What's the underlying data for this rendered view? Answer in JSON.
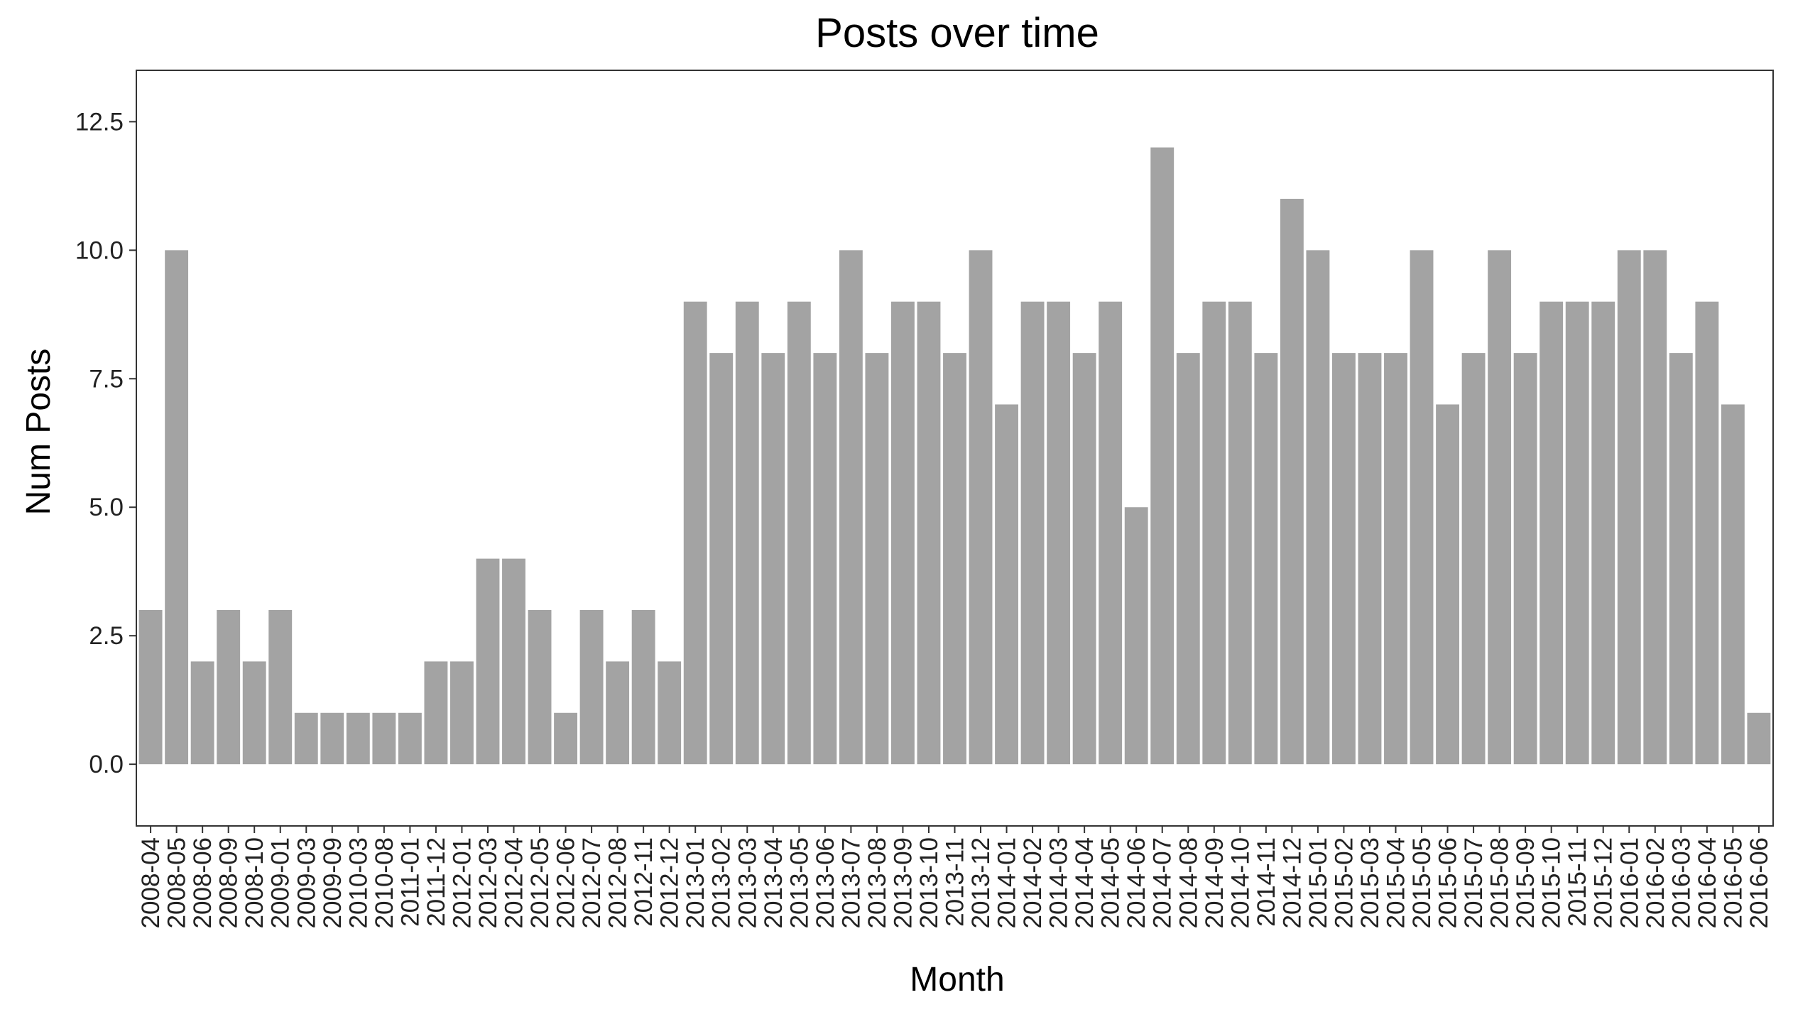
{
  "chart_data": {
    "type": "bar",
    "title": "Posts over time",
    "xlabel": "Month",
    "ylabel": "Num Posts",
    "ylim": [
      -1.2,
      13.5
    ],
    "yticks": [
      "0.0",
      "2.5",
      "5.0",
      "7.5",
      "10.0",
      "12.5"
    ],
    "ytick_values": [
      0,
      2.5,
      5,
      7.5,
      10,
      12.5
    ],
    "grid": false,
    "bar_color": "#a3a3a3",
    "categories": [
      "2008-04",
      "2008-05",
      "2008-06",
      "2008-09",
      "2008-10",
      "2009-01",
      "2009-03",
      "2009-09",
      "2010-03",
      "2010-08",
      "2011-01",
      "2011-12",
      "2012-01",
      "2012-03",
      "2012-04",
      "2012-05",
      "2012-06",
      "2012-07",
      "2012-08",
      "2012-11",
      "2012-12",
      "2013-01",
      "2013-02",
      "2013-03",
      "2013-04",
      "2013-05",
      "2013-06",
      "2013-07",
      "2013-08",
      "2013-09",
      "2013-10",
      "2013-11",
      "2013-12",
      "2014-01",
      "2014-02",
      "2014-03",
      "2014-04",
      "2014-05",
      "2014-06",
      "2014-07",
      "2014-08",
      "2014-09",
      "2014-10",
      "2014-11",
      "2014-12",
      "2015-01",
      "2015-02",
      "2015-03",
      "2015-04",
      "2015-05",
      "2015-06",
      "2015-07",
      "2015-08",
      "2015-09",
      "2015-10",
      "2015-11",
      "2015-12",
      "2016-01",
      "2016-02",
      "2016-03",
      "2016-04",
      "2016-05",
      "2016-06"
    ],
    "values": [
      3,
      10,
      2,
      3,
      2,
      3,
      1,
      1,
      1,
      1,
      1,
      2,
      2,
      4,
      4,
      3,
      1,
      3,
      2,
      3,
      2,
      9,
      8,
      9,
      8,
      9,
      8,
      10,
      8,
      9,
      9,
      8,
      10,
      7,
      9,
      9,
      8,
      9,
      5,
      12,
      8,
      9,
      9,
      8,
      11,
      10,
      8,
      8,
      8,
      10,
      7,
      8,
      10,
      8,
      9,
      9,
      9,
      10,
      10,
      8,
      9,
      7,
      1
    ]
  }
}
